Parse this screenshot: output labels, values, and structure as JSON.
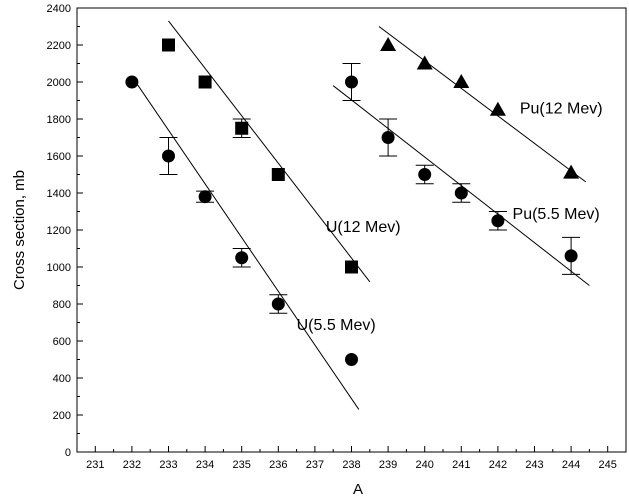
{
  "chart_data": {
    "type": "scatter",
    "title": "",
    "xlabel": "A",
    "ylabel": "Cross section, mb",
    "xlim": [
      230.5,
      245.5
    ],
    "ylim": [
      0,
      2400
    ],
    "xticks": [
      231,
      232,
      233,
      234,
      235,
      236,
      237,
      238,
      239,
      240,
      241,
      242,
      243,
      244,
      245
    ],
    "yticks": [
      0,
      200,
      400,
      600,
      800,
      1000,
      1200,
      1400,
      1600,
      1800,
      2000,
      2200,
      2400
    ],
    "grid": false,
    "legend": "none",
    "series": [
      {
        "name": "U(12 Mev)",
        "marker": "square",
        "points": [
          {
            "x": 233,
            "y": 2200
          },
          {
            "x": 234,
            "y": 2000
          },
          {
            "x": 235,
            "y": 1750,
            "err": 50
          },
          {
            "x": 236,
            "y": 1500
          },
          {
            "x": 238,
            "y": 1000
          }
        ],
        "fit": [
          [
            233,
            2330
          ],
          [
            238.5,
            920
          ]
        ]
      },
      {
        "name": "U(5.5 Mev)",
        "marker": "circle",
        "points": [
          {
            "x": 232,
            "y": 2000
          },
          {
            "x": 233,
            "y": 1600,
            "err": 100
          },
          {
            "x": 234,
            "y": 1380,
            "err": 30
          },
          {
            "x": 235,
            "y": 1050,
            "err": 50
          },
          {
            "x": 236,
            "y": 800,
            "err": 50
          },
          {
            "x": 238,
            "y": 500
          }
        ],
        "fit": [
          [
            232,
            2030
          ],
          [
            238.2,
            230
          ]
        ]
      },
      {
        "name": "Pu(12 Mev)",
        "marker": "triangle",
        "points": [
          {
            "x": 239,
            "y": 2200
          },
          {
            "x": 240,
            "y": 2100
          },
          {
            "x": 241,
            "y": 2000
          },
          {
            "x": 242,
            "y": 1850
          },
          {
            "x": 244,
            "y": 1510
          }
        ],
        "fit": [
          [
            238.75,
            2300
          ],
          [
            244.4,
            1460
          ]
        ]
      },
      {
        "name": "Pu(5.5 Mev)",
        "marker": "circle",
        "points": [
          {
            "x": 238,
            "y": 2000,
            "err": 100
          },
          {
            "x": 239,
            "y": 1700,
            "err": 100
          },
          {
            "x": 240,
            "y": 1500,
            "err": 50
          },
          {
            "x": 241,
            "y": 1400,
            "err": 50
          },
          {
            "x": 242,
            "y": 1250,
            "err": 50
          },
          {
            "x": 244,
            "y": 1060,
            "err": 100
          }
        ],
        "fit": [
          [
            237.5,
            1980
          ],
          [
            244.5,
            900
          ]
        ]
      }
    ],
    "annotations": [
      {
        "text": "U(12 Mev)",
        "x": 237.3,
        "y": 1190
      },
      {
        "text": "U(5.5 Mev)",
        "x": 236.5,
        "y": 660
      },
      {
        "text": "Pu(12 Mev)",
        "x": 242.6,
        "y": 1830
      },
      {
        "text": "Pu(5.5 Mev)",
        "x": 242.4,
        "y": 1260
      }
    ]
  }
}
